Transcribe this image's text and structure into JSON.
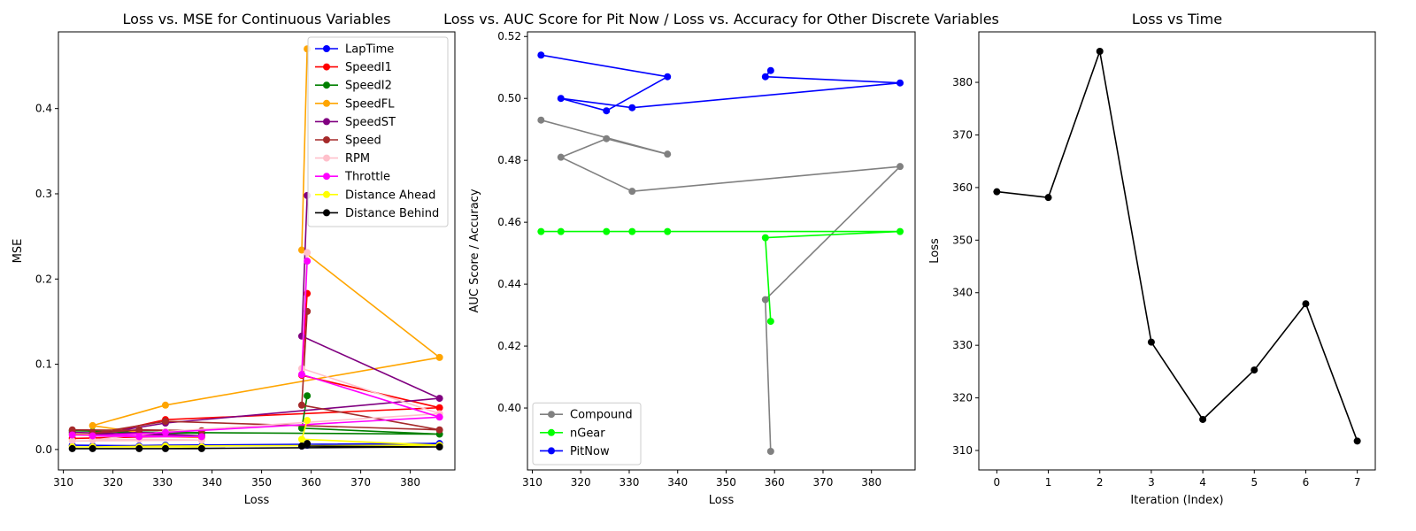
{
  "chart_data": [
    {
      "type": "line",
      "title": "Loss vs. MSE for Continuous Variables",
      "xlabel": "Loss",
      "ylabel": "MSE",
      "xlim": [
        309,
        389
      ],
      "ylim": [
        -0.024,
        0.49
      ],
      "xticks": [
        "310",
        "320",
        "330",
        "340",
        "350",
        "360",
        "370",
        "380"
      ],
      "yticks": [
        "0.0",
        "0.1",
        "0.2",
        "0.3",
        "0.4"
      ],
      "legend": "top-right",
      "x": [
        359.2,
        358.1,
        385.9,
        330.6,
        315.9,
        325.3,
        337.9,
        311.8
      ],
      "series": [
        {
          "name": "LapTime",
          "color": "#0000ff",
          "values": [
            0.005,
            0.004,
            0.007,
            0.005,
            0.004,
            0.004,
            0.004,
            0.005
          ]
        },
        {
          "name": "SpeedI1",
          "color": "#ff0000",
          "values": [
            0.183,
            0.087,
            0.049,
            0.035,
            0.016,
            0.016,
            0.016,
            0.013
          ]
        },
        {
          "name": "SpeedI2",
          "color": "#008000",
          "values": [
            0.063,
            0.025,
            0.018,
            0.02,
            0.021,
            0.02,
            0.019,
            0.022
          ]
        },
        {
          "name": "SpeedFL",
          "color": "#ffa500",
          "values": [
            0.47,
            0.234,
            0.108,
            0.052,
            0.028,
            0.02,
            0.014,
            0.018
          ]
        },
        {
          "name": "SpeedST",
          "color": "#800080",
          "values": [
            0.298,
            0.133,
            0.06,
            0.031,
            0.017,
            0.02,
            0.016,
            0.02
          ]
        },
        {
          "name": "Speed",
          "color": "#a52a2a",
          "values": [
            0.162,
            0.052,
            0.023,
            0.033,
            0.019,
            0.023,
            0.022,
            0.023
          ]
        },
        {
          "name": "RPM",
          "color": "#ffc0cb",
          "values": [
            0.231,
            0.095,
            0.042,
            0.021,
            0.011,
            0.012,
            0.011,
            0.01
          ]
        },
        {
          "name": "Throttle",
          "color": "#ff00ff",
          "values": [
            0.221,
            0.088,
            0.038,
            0.02,
            0.016,
            0.015,
            0.015,
            0.017
          ]
        },
        {
          "name": "Distance Ahead",
          "color": "#ffff00",
          "values": [
            0.034,
            0.012,
            0.005,
            0.004,
            0.003,
            0.003,
            0.003,
            0.003
          ]
        },
        {
          "name": "Distance Behind",
          "color": "#000000",
          "values": [
            0.007,
            0.004,
            0.003,
            0.001,
            0.001,
            0.001,
            0.001,
            0.001
          ]
        }
      ]
    },
    {
      "type": "line",
      "title": "Loss vs. AUC Score for Pit Now / Loss vs. Accuracy for Other Discrete Variables",
      "xlabel": "Loss",
      "ylabel": "AUC Score / Accuracy",
      "xlim": [
        309,
        389
      ],
      "ylim": [
        0.38,
        0.5215
      ],
      "xticks": [
        "310",
        "320",
        "330",
        "340",
        "350",
        "360",
        "370",
        "380"
      ],
      "yticks": [
        "0.40",
        "0.42",
        "0.44",
        "0.46",
        "0.48",
        "0.50",
        "0.52"
      ],
      "legend": "bottom-left",
      "x": [
        359.2,
        358.1,
        385.9,
        330.6,
        315.9,
        325.3,
        337.9,
        311.8
      ],
      "series": [
        {
          "name": "Compound",
          "color": "#808080",
          "values": [
            0.386,
            0.435,
            0.478,
            0.47,
            0.481,
            0.487,
            0.482,
            0.493
          ]
        },
        {
          "name": "nGear",
          "color": "#00ff00",
          "values": [
            0.428,
            0.455,
            0.457,
            0.457,
            0.457,
            0.457,
            0.457,
            0.457
          ]
        },
        {
          "name": "PitNow",
          "color": "#0000ff",
          "values": [
            0.509,
            0.507,
            0.505,
            0.497,
            0.5,
            0.496,
            0.507,
            0.514
          ]
        }
      ]
    },
    {
      "type": "line",
      "title": "Loss vs Time",
      "xlabel": "Iteration (Index)",
      "ylabel": "Loss",
      "xlim": [
        -0.35,
        7.35
      ],
      "ylim": [
        306.3,
        389.6
      ],
      "xticks": [
        "0",
        "1",
        "2",
        "3",
        "4",
        "5",
        "6",
        "7"
      ],
      "yticks": [
        "310",
        "320",
        "330",
        "340",
        "350",
        "360",
        "370",
        "380"
      ],
      "x": [
        0,
        1,
        2,
        3,
        4,
        5,
        6,
        7
      ],
      "series": [
        {
          "color": "#000000",
          "values": [
            359.2,
            358.1,
            385.9,
            330.6,
            315.9,
            325.3,
            337.9,
            311.8
          ]
        }
      ]
    }
  ]
}
